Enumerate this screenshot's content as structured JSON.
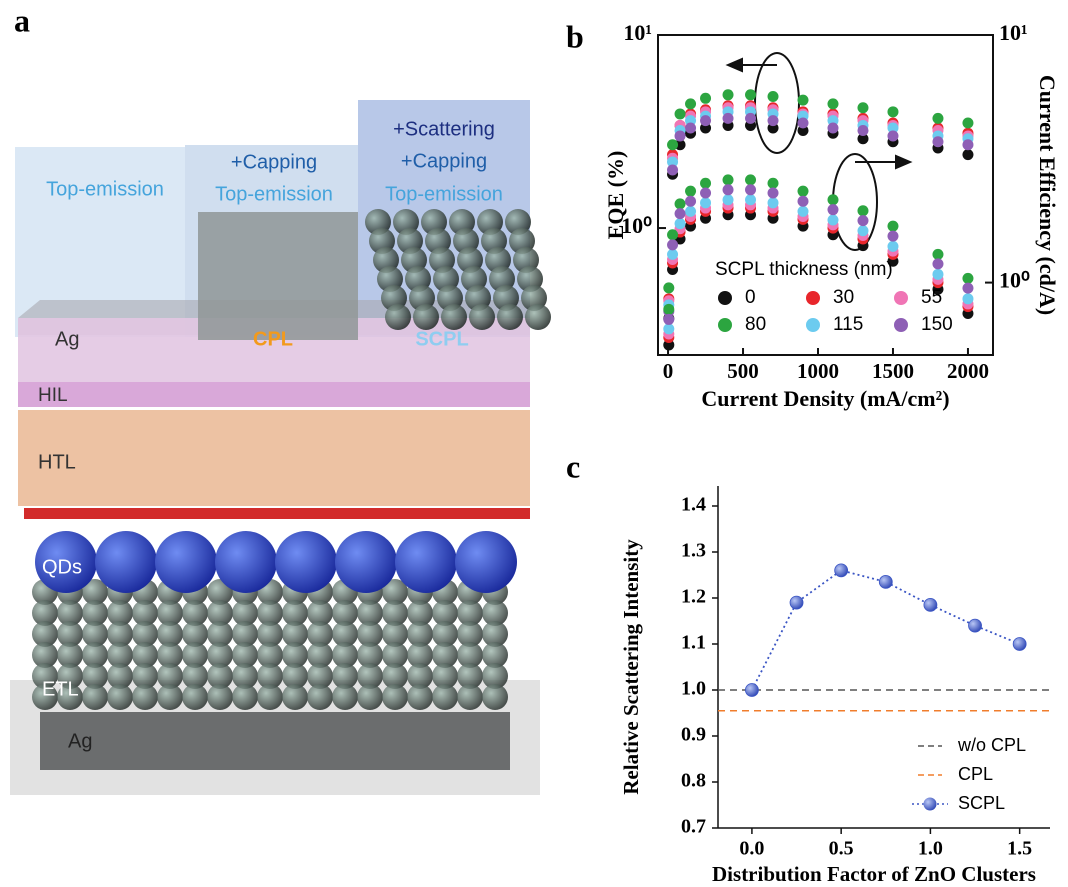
{
  "panel_labels": [
    "a",
    "b",
    "c"
  ],
  "diagram": {
    "columns": [
      [
        "Top-emission"
      ],
      [
        "+Capping",
        "Top-emission"
      ],
      [
        "+Scattering",
        "+Capping",
        "Top-emission"
      ]
    ],
    "layers": [
      "Ag",
      "CPL",
      "SCPL",
      "HIL",
      "HTL",
      "QDs",
      "ETL",
      "Ag"
    ]
  },
  "chart_data": [
    {
      "type": "scatter",
      "x_label": "Current Density (mA/cm²)",
      "y_label": "EQE (%)",
      "y2_label": "Current Efficiency (cd/A)",
      "x": [
        5,
        30,
        80,
        150,
        250,
        400,
        550,
        700,
        900,
        1100,
        1300,
        1500,
        1800,
        2000
      ],
      "xlim": [
        -67,
        2167
      ],
      "xticks": [
        0,
        500,
        1000,
        1500,
        2000
      ],
      "ylog": true,
      "ylim": [
        0.22,
        10
      ],
      "yticks": [
        {
          "value": 1,
          "label": "10⁰"
        },
        {
          "value": 10,
          "label": "10¹"
        }
      ],
      "y2log": true,
      "y2lim": [
        0.51,
        10
      ],
      "y2ticks": [
        {
          "value": 1,
          "label": "10⁰"
        },
        {
          "value": 10,
          "label": "10¹"
        }
      ],
      "legend_title": "SCPL thickness (nm)",
      "series": [
        {
          "name": "0",
          "color": "#111111",
          "values": [
            0.34,
            1.9,
            2.7,
            3.1,
            3.3,
            3.4,
            3.4,
            3.3,
            3.2,
            3.1,
            2.9,
            2.8,
            2.6,
            2.4
          ]
        },
        {
          "name": "30",
          "color": "#e8262b",
          "values": [
            0.43,
            2.4,
            3.4,
            3.9,
            4.1,
            4.3,
            4.3,
            4.2,
            4.0,
            3.9,
            3.7,
            3.5,
            3.3,
            3.1
          ]
        },
        {
          "name": "55",
          "color": "#f075b5",
          "values": [
            0.42,
            2.3,
            3.4,
            3.8,
            4.0,
            4.2,
            4.2,
            4.1,
            3.9,
            3.8,
            3.6,
            3.4,
            3.2,
            3.0
          ]
        },
        {
          "name": "80",
          "color": "#2ca540",
          "values": [
            0.49,
            2.7,
            3.9,
            4.4,
            4.7,
            4.9,
            4.9,
            4.8,
            4.6,
            4.4,
            4.2,
            4.0,
            3.7,
            3.5
          ]
        },
        {
          "name": "115",
          "color": "#6ccbef",
          "values": [
            0.4,
            2.2,
            3.2,
            3.6,
            3.8,
            4.0,
            4.0,
            3.9,
            3.8,
            3.6,
            3.4,
            3.3,
            3.0,
            2.9
          ]
        },
        {
          "name": "150",
          "color": "#8e5fb5",
          "values": [
            0.37,
            2.0,
            3.0,
            3.3,
            3.6,
            3.7,
            3.7,
            3.6,
            3.5,
            3.3,
            3.2,
            3.0,
            2.8,
            2.7
          ]
        },
        {
          "axis": "y2",
          "color": "#111111",
          "values": [
            0.56,
            1.13,
            1.5,
            1.69,
            1.82,
            1.88,
            1.88,
            1.82,
            1.69,
            1.56,
            1.41,
            1.22,
            0.94,
            0.75
          ]
        },
        {
          "axis": "y2",
          "color": "#e8262b",
          "values": [
            0.6,
            1.2,
            1.6,
            1.8,
            1.94,
            2.0,
            2.0,
            1.94,
            1.8,
            1.66,
            1.5,
            1.3,
            1.0,
            0.8
          ]
        },
        {
          "axis": "y2",
          "color": "#f075b5",
          "values": [
            0.62,
            1.24,
            1.65,
            1.85,
            2.0,
            2.06,
            2.06,
            2.0,
            1.85,
            1.71,
            1.55,
            1.34,
            1.03,
            0.82
          ]
        },
        {
          "axis": "y2",
          "color": "#2ca540",
          "values": [
            0.78,
            1.56,
            2.08,
            2.34,
            2.52,
            2.6,
            2.6,
            2.52,
            2.34,
            2.16,
            1.95,
            1.69,
            1.3,
            1.04
          ]
        },
        {
          "axis": "y2",
          "color": "#6ccbef",
          "values": [
            0.65,
            1.3,
            1.73,
            1.94,
            2.1,
            2.16,
            2.16,
            2.1,
            1.94,
            1.79,
            1.62,
            1.4,
            1.08,
            0.86
          ]
        },
        {
          "axis": "y2",
          "color": "#8e5fb5",
          "values": [
            0.71,
            1.42,
            1.9,
            2.13,
            2.3,
            2.37,
            2.37,
            2.3,
            2.13,
            1.97,
            1.78,
            1.54,
            1.19,
            0.95
          ]
        }
      ]
    },
    {
      "type": "line",
      "x_label": "Distribution Factor of ZnO Clusters",
      "y_label": "Relative Scattering Intensity",
      "x": [
        0,
        0.25,
        0.5,
        0.75,
        1,
        1.25,
        1.5
      ],
      "xlim": [
        -0.19,
        1.67
      ],
      "xticks": [
        {
          "value": 0,
          "label": "0.0"
        },
        0.5,
        {
          "value": 1,
          "label": "1.0"
        },
        1.5
      ],
      "ylim": [
        0.7,
        1.4
      ],
      "yticks": [
        0.7,
        0.8,
        0.9,
        {
          "value": 1,
          "label": "1.0"
        },
        1.1,
        1.2,
        1.3,
        1.4
      ],
      "series": [
        {
          "name": "w/o CPL",
          "color": "#555555",
          "y": 1.0
        },
        {
          "name": "CPL",
          "color": "#f07d2c",
          "y": 0.955
        },
        {
          "name": "SCPL",
          "color": "#3a55c4",
          "values": [
            1.0,
            1.19,
            1.26,
            1.235,
            1.185,
            1.14,
            1.1
          ]
        }
      ]
    }
  ]
}
